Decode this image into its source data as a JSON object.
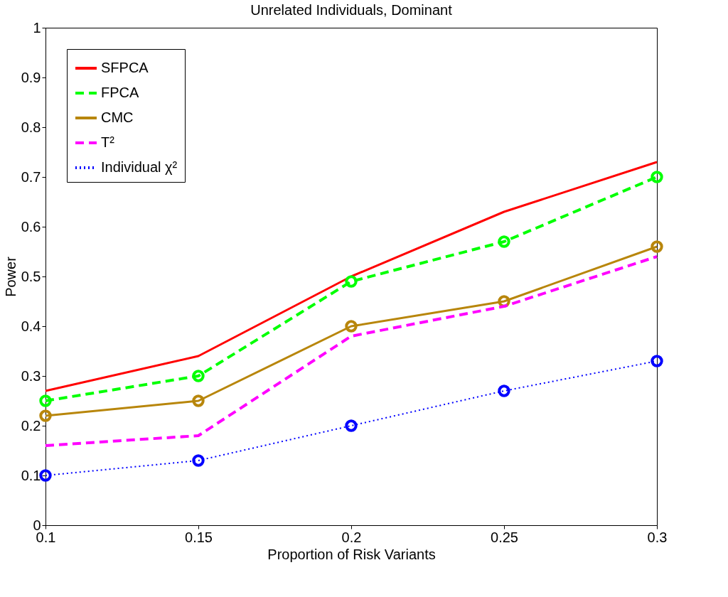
{
  "chart_data": {
    "type": "line",
    "title": "Unrelated Individuals, Dominant",
    "xlabel": "Proportion of Risk Variants",
    "ylabel": "Power",
    "x": [
      0.1,
      0.15,
      0.2,
      0.25,
      0.3
    ],
    "xlim": [
      0.1,
      0.3
    ],
    "xticks": [
      0.1,
      0.15,
      0.2,
      0.25,
      0.3
    ],
    "ylim": [
      0,
      1
    ],
    "yticks": [
      0,
      0.1,
      0.2,
      0.3,
      0.4,
      0.5,
      0.6,
      0.7,
      0.8,
      0.9,
      1
    ],
    "grid": false,
    "legend": "top left",
    "series": [
      {
        "name": "SFPCA",
        "color": "#ff0000",
        "values": [
          0.27,
          0.34,
          0.5,
          0.63,
          0.73
        ],
        "line_style": "solid",
        "marker": "none"
      },
      {
        "name": "FPCA",
        "color": "#00ff00",
        "values": [
          0.25,
          0.3,
          0.49,
          0.57,
          0.7
        ],
        "line_style": "dashed",
        "marker": "circle"
      },
      {
        "name": "CMC",
        "color": "#b8860b",
        "values": [
          0.22,
          0.25,
          0.4,
          0.45,
          0.56
        ],
        "line_style": "solid",
        "marker": "circle"
      },
      {
        "name": "T²",
        "color": "#ff00ff",
        "values": [
          0.16,
          0.18,
          0.38,
          0.44,
          0.54
        ],
        "line_style": "dashed",
        "marker": "none"
      },
      {
        "name": "Individual χ²",
        "color": "#0000ff",
        "values": [
          0.1,
          0.13,
          0.2,
          0.27,
          0.33
        ],
        "line_style": "dotted",
        "marker": "circle"
      }
    ]
  }
}
